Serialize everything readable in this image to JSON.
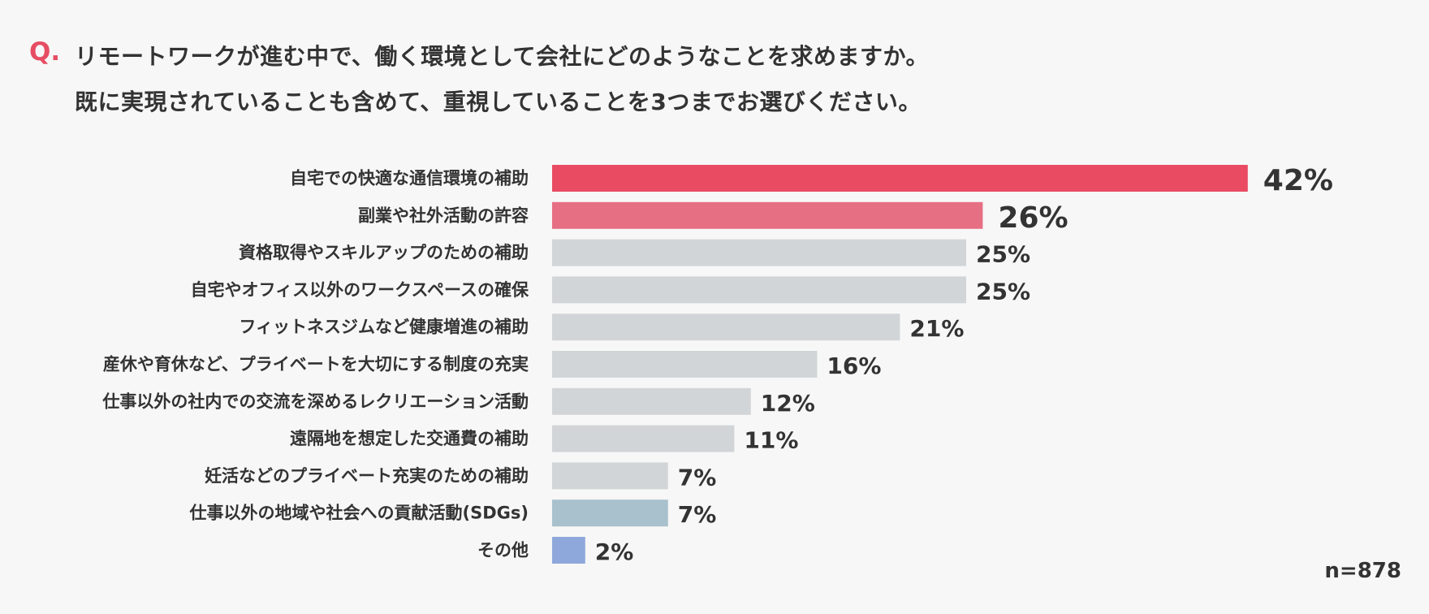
{
  "question": {
    "mark": "Q.",
    "line1": "リモートワークが進む中で、働く環境として会社にどのようなことを求めますか。",
    "line2": "既に実現されていることも含めて、重視していることを3つまでお選びください。"
  },
  "chart_data": {
    "type": "bar",
    "orientation": "horizontal",
    "unit": "%",
    "categories": [
      "自宅での快適な通信環境の補助",
      "副業や社外活動の許容",
      "資格取得やスキルアップのための補助",
      "自宅やオフィス以外のワークスペースの確保",
      "フィットネスジムなど健康増進の補助",
      "産休や育休など、プライベートを大切にする制度の充実",
      "仕事以外の社内での交流を深めるレクリエーション活動",
      "遠隔地を想定した交通費の補助",
      "妊活などのプライベート充実のための補助",
      "仕事以外の地域や社会への貢献活動(SDGs)",
      "その他"
    ],
    "values": [
      42,
      26,
      25,
      25,
      21,
      16,
      12,
      11,
      7,
      7,
      2
    ],
    "bar_colors": [
      "#e94b63",
      "#e66f84",
      "#d2d5d8",
      "#d2d5d8",
      "#d2d5d8",
      "#d2d5d8",
      "#d2d5d8",
      "#d2d5d8",
      "#d2d5d8",
      "#a9c1cd",
      "#8fa8db"
    ],
    "highlight_top": 2,
    "xlim": [
      0,
      45
    ],
    "grid": false,
    "sample_size": "n=878"
  },
  "colors": {
    "accent": "#e64d63",
    "text": "#333333",
    "background": "#f7f7f7"
  }
}
